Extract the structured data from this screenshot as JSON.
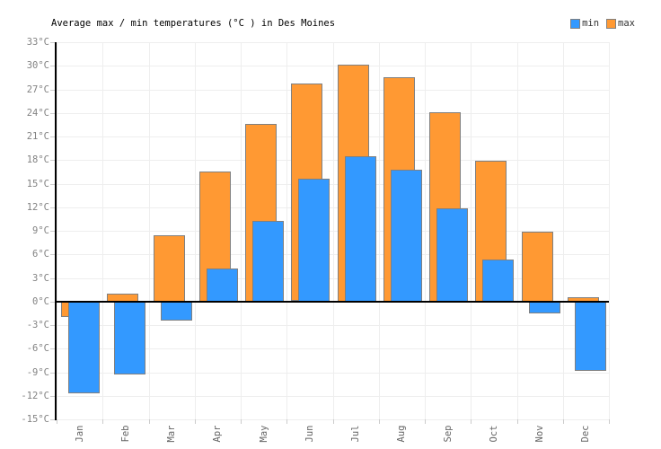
{
  "chart_data": {
    "type": "bar",
    "title": "Average max / min temperatures (°C ) in Des Moines",
    "categories": [
      "Jan",
      "Feb",
      "Mar",
      "Apr",
      "May",
      "Jun",
      "Jul",
      "Aug",
      "Sep",
      "Oct",
      "Nov",
      "Dec"
    ],
    "series": [
      {
        "name": "min",
        "color": "#3399ff",
        "values": [
          -11.7,
          -9.2,
          -2.4,
          4.2,
          10.3,
          15.6,
          18.5,
          16.8,
          11.9,
          5.4,
          -1.5,
          -8.8
        ]
      },
      {
        "name": "max",
        "color": "#ff9933",
        "values": [
          -1.9,
          1.0,
          8.4,
          16.6,
          22.6,
          27.7,
          30.2,
          28.6,
          24.1,
          17.9,
          8.9,
          0.6
        ]
      }
    ],
    "ylim": [
      -15,
      33
    ],
    "ytick_step": 3,
    "ytick_labels": [
      "33°C",
      "30°C",
      "27°C",
      "24°C",
      "21°C",
      "18°C",
      "15°C",
      "12°C",
      "9°C",
      "6°C",
      "3°C",
      "0°C",
      "-3°C",
      "-6°C",
      "-9°C",
      "-12°C",
      "-15°C"
    ],
    "grid": true,
    "legend_position": "top-right",
    "colors": {
      "min_fill": "#3399ff",
      "max_fill": "#ff9933",
      "bar_border": "#808080",
      "axis": "#000000",
      "gridline": "#eeeeee",
      "tick": "#cccccc",
      "title_text": "#000000",
      "ytick_text": "#828282",
      "xtick_text": "#666666",
      "legend_text": "#333333"
    }
  }
}
